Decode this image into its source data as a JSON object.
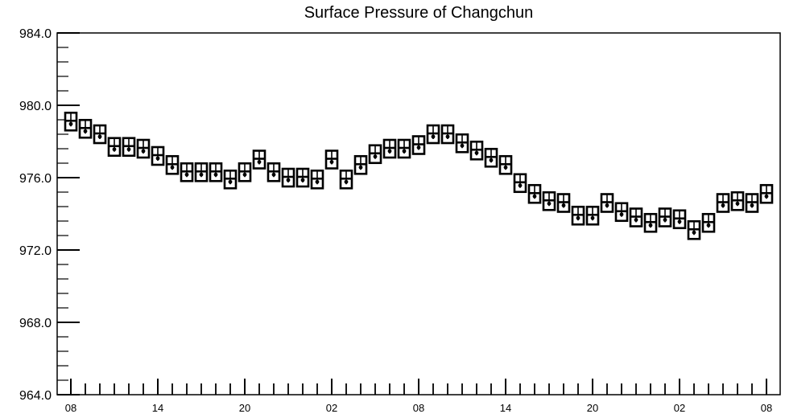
{
  "chart_data": {
    "type": "scatter",
    "title": "Surface Pressure of Changchun",
    "xlabel": "",
    "ylabel": "",
    "ylim": [
      964.0,
      984.0
    ],
    "yticks": [
      "964.0",
      "968.0",
      "972.0",
      "976.0",
      "980.0",
      "984.0"
    ],
    "xtick_labels": [
      "08",
      "14",
      "20",
      "02",
      "08",
      "14",
      "20",
      "02",
      "08"
    ],
    "xtick_hours": [
      0,
      6,
      12,
      18,
      24,
      30,
      36,
      42,
      48
    ],
    "x_unit": "hour offset (1-hourly)",
    "grid": false,
    "legend": "none",
    "marker": "boxed station glyph",
    "series": [
      {
        "x": [
          0,
          1,
          2,
          3,
          4,
          5,
          6,
          7,
          8,
          9,
          10,
          11,
          12,
          13,
          14,
          15,
          16,
          17,
          18,
          19,
          20,
          21,
          22,
          23,
          24,
          25,
          26,
          27,
          28,
          29,
          30,
          31,
          32,
          33,
          34,
          35,
          36,
          37,
          38,
          39,
          40,
          41,
          42,
          43,
          44,
          45,
          46,
          47,
          48
        ],
        "values": [
          979.1,
          978.7,
          978.4,
          977.7,
          977.7,
          977.6,
          977.2,
          976.7,
          976.3,
          976.3,
          976.3,
          975.9,
          976.3,
          977.0,
          976.3,
          976.0,
          976.0,
          975.9,
          977.0,
          975.9,
          976.7,
          977.3,
          977.6,
          977.6,
          977.8,
          978.4,
          978.4,
          977.9,
          977.5,
          977.1,
          976.7,
          975.7,
          975.1,
          974.7,
          974.6,
          973.9,
          973.9,
          974.6,
          974.1,
          973.8,
          973.5,
          973.8,
          973.7,
          973.1,
          973.5,
          974.6,
          974.7,
          974.6,
          975.1
        ]
      }
    ]
  }
}
